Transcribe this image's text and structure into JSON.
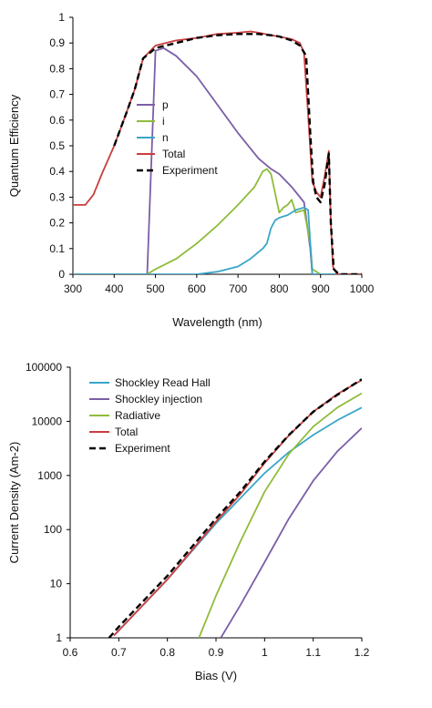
{
  "chart_data": [
    {
      "type": "line",
      "title": "",
      "xlabel": "Wavelength (nm)",
      "ylabel": "Quantum Efficiency",
      "xlim": [
        300,
        1000
      ],
      "ylim": [
        0,
        1
      ],
      "x_ticks": [
        300,
        400,
        500,
        600,
        700,
        800,
        900,
        1000
      ],
      "y_ticks": [
        0,
        0.1,
        0.2,
        0.3,
        0.4,
        0.5,
        0.6,
        0.7,
        0.8,
        0.9,
        1
      ],
      "x_tick_labels": [
        "300",
        "400",
        "500",
        "600",
        "700",
        "800",
        "900",
        "1000"
      ],
      "y_tick_labels": [
        "0",
        "0.1",
        "0.2",
        "0.3",
        "0.4",
        "0.5",
        "0.6",
        "0.7",
        "0.8",
        "0.9",
        "1"
      ],
      "grid": false,
      "legend_position": "center-left",
      "series": [
        {
          "name": "p",
          "color": "#7b5ea7",
          "dash": false,
          "x": [
            300,
            480,
            500,
            520,
            550,
            600,
            650,
            700,
            750,
            780,
            800,
            830,
            860,
            875,
            880,
            1000
          ],
          "y": [
            0,
            0,
            0.87,
            0.88,
            0.85,
            0.77,
            0.66,
            0.55,
            0.45,
            0.41,
            0.39,
            0.34,
            0.28,
            0.1,
            0,
            0
          ]
        },
        {
          "name": "i",
          "color": "#8fbc3b",
          "dash": false,
          "x": [
            300,
            450,
            480,
            500,
            550,
            600,
            650,
            700,
            740,
            760,
            770,
            780,
            800,
            810,
            820,
            830,
            840,
            860,
            875,
            880,
            900,
            1000
          ],
          "y": [
            0,
            0,
            0,
            0.02,
            0.06,
            0.12,
            0.19,
            0.27,
            0.34,
            0.4,
            0.41,
            0.39,
            0.24,
            0.26,
            0.27,
            0.29,
            0.24,
            0.25,
            0.12,
            0.02,
            0,
            0
          ]
        },
        {
          "name": "n",
          "color": "#3aa6c9",
          "dash": false,
          "x": [
            300,
            600,
            650,
            700,
            730,
            760,
            770,
            780,
            790,
            800,
            820,
            840,
            860,
            870,
            880,
            1000
          ],
          "y": [
            0,
            0,
            0.01,
            0.03,
            0.06,
            0.1,
            0.12,
            0.18,
            0.21,
            0.22,
            0.23,
            0.25,
            0.26,
            0.25,
            0,
            0
          ]
        },
        {
          "name": "Total",
          "color": "#cc3d3d",
          "dash": false,
          "x": [
            300,
            330,
            350,
            370,
            400,
            430,
            450,
            470,
            500,
            550,
            600,
            650,
            700,
            730,
            750,
            780,
            800,
            830,
            850,
            860,
            870,
            880,
            890,
            900,
            910,
            920,
            925,
            930,
            940,
            960,
            1000
          ],
          "y": [
            0.27,
            0.27,
            0.31,
            0.39,
            0.5,
            0.63,
            0.72,
            0.84,
            0.89,
            0.91,
            0.92,
            0.935,
            0.94,
            0.945,
            0.94,
            0.93,
            0.925,
            0.915,
            0.9,
            0.86,
            0.62,
            0.36,
            0.32,
            0.3,
            0.38,
            0.48,
            0.2,
            0.03,
            0,
            0,
            0
          ]
        },
        {
          "name": "Experiment",
          "color": "#000000",
          "dash": true,
          "x": [
            400,
            430,
            450,
            470,
            500,
            550,
            600,
            650,
            700,
            720,
            750,
            780,
            800,
            830,
            850,
            865,
            875,
            882,
            890,
            900,
            910,
            920,
            925,
            932,
            945,
            1000
          ],
          "y": [
            0.5,
            0.63,
            0.72,
            0.84,
            0.88,
            0.9,
            0.92,
            0.93,
            0.935,
            0.935,
            0.935,
            0.93,
            0.925,
            0.91,
            0.89,
            0.85,
            0.55,
            0.36,
            0.3,
            0.28,
            0.35,
            0.47,
            0.2,
            0.02,
            0,
            0
          ]
        }
      ]
    },
    {
      "type": "line",
      "title": "",
      "xlabel": "Bias (V)",
      "ylabel": "Current Density (Am-2)",
      "xlim": [
        0.6,
        1.2
      ],
      "ylim": [
        1,
        100000
      ],
      "y_scale": "log",
      "x_ticks": [
        0.6,
        0.7,
        0.8,
        0.9,
        1,
        1.1,
        1.2
      ],
      "y_ticks": [
        1,
        10,
        100,
        1000,
        10000,
        100000
      ],
      "x_tick_labels": [
        "0.6",
        "0.7",
        "0.8",
        "0.9",
        "1",
        "1.1",
        "1.2"
      ],
      "y_tick_labels": [
        "1",
        "10",
        "100",
        "1000",
        "10000",
        "100000"
      ],
      "grid": false,
      "legend_position": "top-left",
      "series": [
        {
          "name": "Shockley Read Hall",
          "color": "#3aa6c9",
          "dash": false,
          "x": [
            0.69,
            0.8,
            0.9,
            0.95,
            1.0,
            1.05,
            1.1,
            1.15,
            1.2
          ],
          "y": [
            1.1,
            12,
            130,
            380,
            1100,
            2700,
            5600,
            10500,
            18000
          ]
        },
        {
          "name": "Shockley injection",
          "color": "#7b5ea7",
          "dash": false,
          "x": [
            0.91,
            0.95,
            1.0,
            1.05,
            1.1,
            1.15,
            1.2
          ],
          "y": [
            1,
            4,
            25,
            160,
            800,
            2800,
            7500
          ]
        },
        {
          "name": "Radiative",
          "color": "#8fbc3b",
          "dash": false,
          "x": [
            0.865,
            0.9,
            0.95,
            1.0,
            1.05,
            1.1,
            1.15,
            1.2
          ],
          "y": [
            1,
            6,
            60,
            500,
            2500,
            8000,
            18000,
            33000
          ]
        },
        {
          "name": "Total",
          "color": "#cc3d3d",
          "dash": false,
          "x": [
            0.69,
            0.8,
            0.9,
            0.95,
            1.0,
            1.05,
            1.1,
            1.15,
            1.2
          ],
          "y": [
            1.1,
            12,
            140,
            450,
            1700,
            5500,
            15000,
            32000,
            58000
          ]
        },
        {
          "name": "Experiment",
          "color": "#000000",
          "dash": true,
          "x": [
            0.68,
            0.7,
            0.8,
            0.9,
            0.95,
            1.0,
            1.05,
            1.1,
            1.15,
            1.2
          ],
          "y": [
            1,
            1.6,
            14,
            160,
            500,
            1800,
            5600,
            15000,
            31000,
            60000
          ]
        }
      ]
    }
  ]
}
